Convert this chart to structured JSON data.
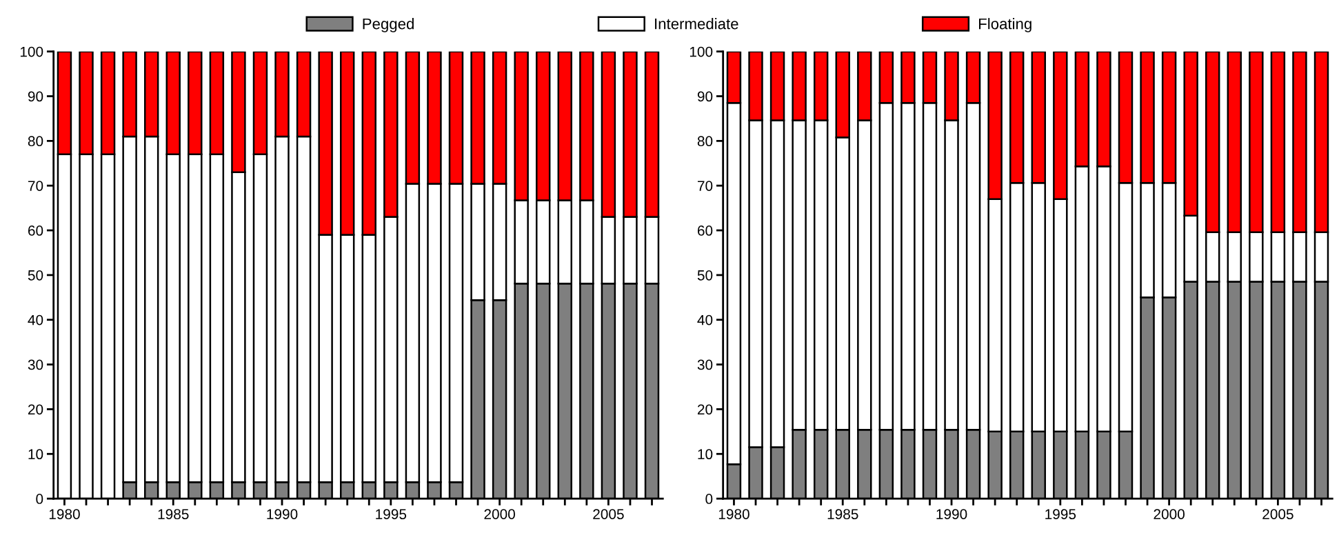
{
  "chart_data": [
    {
      "type": "bar",
      "stacked": true,
      "legend": "top",
      "grid": false,
      "x": [
        1980,
        1981,
        1982,
        1983,
        1984,
        1985,
        1986,
        1987,
        1988,
        1989,
        1990,
        1991,
        1992,
        1993,
        1994,
        1995,
        1996,
        1997,
        1998,
        1999,
        2000,
        2001,
        2002,
        2003,
        2004,
        2005,
        2006,
        2007
      ],
      "xlim": [
        1979.5,
        2007.5
      ],
      "xticks": [
        {
          "value": 1980,
          "label": "1980"
        },
        {
          "value": 1981,
          "label": null
        },
        {
          "value": 1982,
          "label": null
        },
        {
          "value": 1983,
          "label": null
        },
        {
          "value": 1984,
          "label": null
        },
        {
          "value": 1985,
          "label": "1985"
        },
        {
          "value": 1986,
          "label": null
        },
        {
          "value": 1987,
          "label": null
        },
        {
          "value": 1988,
          "label": null
        },
        {
          "value": 1989,
          "label": null
        },
        {
          "value": 1990,
          "label": "1990"
        },
        {
          "value": 1991,
          "label": null
        },
        {
          "value": 1992,
          "label": null
        },
        {
          "value": 1993,
          "label": null
        },
        {
          "value": 1994,
          "label": null
        },
        {
          "value": 1995,
          "label": "1995"
        },
        {
          "value": 1996,
          "label": null
        },
        {
          "value": 1997,
          "label": null
        },
        {
          "value": 1998,
          "label": null
        },
        {
          "value": 1999,
          "label": null
        },
        {
          "value": 2000,
          "label": "2000"
        },
        {
          "value": 2001,
          "label": null
        },
        {
          "value": 2002,
          "label": null
        },
        {
          "value": 2003,
          "label": null
        },
        {
          "value": 2004,
          "label": null
        },
        {
          "value": 2005,
          "label": "2005"
        },
        {
          "value": 2006,
          "label": null
        },
        {
          "value": 2007,
          "label": null
        }
      ],
      "ylim": [
        0,
        100
      ],
      "yticks": [
        0,
        10,
        20,
        30,
        40,
        50,
        60,
        70,
        80,
        90,
        100
      ],
      "series": [
        {
          "name": "Pegged",
          "color": "#7f7f7f",
          "values": [
            0,
            0,
            0,
            3.7,
            3.7,
            3.7,
            3.7,
            3.7,
            3.7,
            3.7,
            3.7,
            3.7,
            3.7,
            3.7,
            3.7,
            3.7,
            3.7,
            3.7,
            3.7,
            44.4,
            44.4,
            48.1,
            48.1,
            48.1,
            48.1,
            48.1,
            48.1,
            48.1
          ]
        },
        {
          "name": "Intermediate",
          "color": "#ffffff",
          "values": [
            77,
            77,
            77,
            77.3,
            77.3,
            73.3,
            73.3,
            73.3,
            69.3,
            73.3,
            77.3,
            77.3,
            55.3,
            55.3,
            55.3,
            59.3,
            66.7,
            66.7,
            66.7,
            26,
            26,
            18.6,
            18.6,
            18.6,
            18.6,
            14.9,
            14.9,
            14.9
          ]
        },
        {
          "name": "Floating",
          "color": "#ff0000",
          "values": [
            23,
            23,
            23,
            19,
            19,
            23,
            23,
            23,
            27,
            23,
            19,
            19,
            41,
            41,
            41,
            37,
            29.6,
            29.6,
            29.6,
            29.6,
            29.6,
            33.3,
            33.3,
            33.3,
            33.3,
            37,
            37,
            37
          ]
        }
      ]
    },
    {
      "type": "bar",
      "stacked": true,
      "grid": false,
      "x": [
        1980,
        1981,
        1982,
        1983,
        1984,
        1985,
        1986,
        1987,
        1988,
        1989,
        1990,
        1991,
        1992,
        1993,
        1994,
        1995,
        1996,
        1997,
        1998,
        1999,
        2000,
        2001,
        2002,
        2003,
        2004,
        2005,
        2006,
        2007
      ],
      "xlim": [
        1979.5,
        2007.5
      ],
      "xticks": [
        {
          "value": 1980,
          "label": "1980"
        },
        {
          "value": 1981,
          "label": null
        },
        {
          "value": 1982,
          "label": null
        },
        {
          "value": 1983,
          "label": null
        },
        {
          "value": 1984,
          "label": null
        },
        {
          "value": 1985,
          "label": "1985"
        },
        {
          "value": 1986,
          "label": null
        },
        {
          "value": 1987,
          "label": null
        },
        {
          "value": 1988,
          "label": null
        },
        {
          "value": 1989,
          "label": null
        },
        {
          "value": 1990,
          "label": "1990"
        },
        {
          "value": 1991,
          "label": null
        },
        {
          "value": 1992,
          "label": null
        },
        {
          "value": 1993,
          "label": null
        },
        {
          "value": 1994,
          "label": null
        },
        {
          "value": 1995,
          "label": "1995"
        },
        {
          "value": 1996,
          "label": null
        },
        {
          "value": 1997,
          "label": null
        },
        {
          "value": 1998,
          "label": null
        },
        {
          "value": 1999,
          "label": null
        },
        {
          "value": 2000,
          "label": "2000"
        },
        {
          "value": 2001,
          "label": null
        },
        {
          "value": 2002,
          "label": null
        },
        {
          "value": 2003,
          "label": null
        },
        {
          "value": 2004,
          "label": null
        },
        {
          "value": 2005,
          "label": "2005"
        },
        {
          "value": 2006,
          "label": null
        },
        {
          "value": 2007,
          "label": null
        }
      ],
      "ylim": [
        0,
        100
      ],
      "yticks": [
        0,
        10,
        20,
        30,
        40,
        50,
        60,
        70,
        80,
        90,
        100
      ],
      "series": [
        {
          "color": "#7f7f7f",
          "values": [
            7.7,
            11.5,
            11.5,
            15.4,
            15.4,
            15.4,
            15.4,
            15.4,
            15.4,
            15.4,
            15.4,
            15.4,
            15,
            15,
            15,
            15,
            15,
            15,
            15,
            45,
            45,
            48.5,
            48.5,
            48.5,
            48.5,
            48.5,
            48.5,
            48.5
          ]
        },
        {
          "color": "#ffffff",
          "values": [
            80.8,
            73.1,
            73.1,
            69.2,
            69.2,
            65.4,
            69.2,
            73.1,
            73.1,
            73.1,
            69.2,
            73.1,
            52,
            55.6,
            55.6,
            52,
            59.3,
            59.3,
            55.6,
            25.6,
            25.6,
            14.8,
            11.1,
            11.1,
            11.1,
            11.1,
            11.1,
            11.1
          ]
        },
        {
          "color": "#ff0000",
          "values": [
            11.5,
            15.4,
            15.4,
            15.4,
            15.4,
            19.2,
            15.4,
            11.5,
            11.5,
            11.5,
            15.4,
            11.5,
            33,
            29.4,
            29.4,
            33,
            25.7,
            25.7,
            29.4,
            29.4,
            29.4,
            36.7,
            40.4,
            40.4,
            40.4,
            40.4,
            40.4,
            40.4
          ]
        }
      ]
    }
  ]
}
